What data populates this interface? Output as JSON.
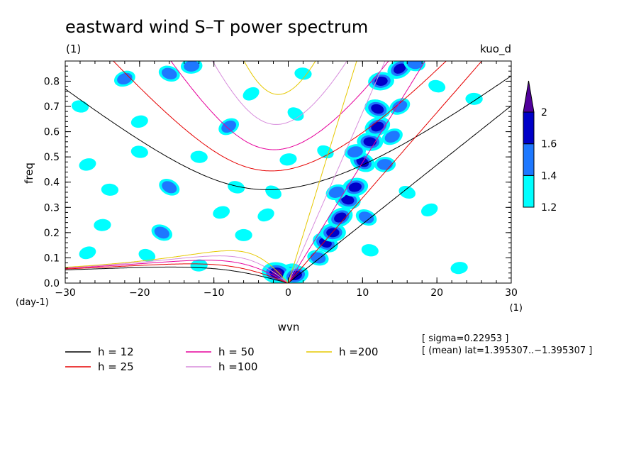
{
  "chart_data": {
    "type": "heatmap",
    "title": "eastward wind S–T power spectrum",
    "subtitle_left": "(1)",
    "subtitle_right": "kuo_d",
    "xlabel": "wvn",
    "ylabel": "freq",
    "x_unit": "(1)",
    "y_unit": "(day-1)",
    "xlim": [
      -30,
      30
    ],
    "ylim": [
      0,
      0.88
    ],
    "x_ticks": [
      -30,
      -20,
      -10,
      0,
      10,
      20,
      30
    ],
    "x_tick_labels": [
      "−30",
      "−20",
      "−10",
      "0",
      "10",
      "20",
      "30"
    ],
    "y_ticks": [
      0,
      0.1,
      0.2,
      0.3,
      0.4,
      0.5,
      0.6,
      0.7,
      0.8
    ],
    "y_tick_labels": [
      "0.0",
      "0.1",
      "0.2",
      "0.3",
      "0.4",
      "0.5",
      "0.6",
      "0.7",
      "0.8"
    ],
    "colorbar": {
      "levels": [
        1.2,
        1.4,
        1.6,
        2
      ],
      "labels": [
        "1.2",
        "1.4",
        "1.6",
        "2"
      ],
      "colors": [
        "#00ffff",
        "#1e78ff",
        "#0000c8",
        "#50009b"
      ]
    },
    "dispersion_curves": [
      {
        "h": 12,
        "label": "h = 12",
        "color": "#000000"
      },
      {
        "h": 25,
        "label": "h = 25",
        "color": "#e60000"
      },
      {
        "h": 50,
        "label": "h = 50",
        "color": "#e6009b"
      },
      {
        "h": 100,
        "label": "h =100",
        "color": "#d78cdc"
      },
      {
        "h": 200,
        "label": "h =200",
        "color": "#e6c800"
      }
    ],
    "annotation_sigma": "[ sigma=0.22953 ]",
    "annotation_mean": "[ (mean) lat=1.395307..−1.395307 ]",
    "blobs": [
      {
        "x": 0,
        "y": 0.03,
        "level": 4
      },
      {
        "x": -1.5,
        "y": 0.04,
        "level": 4
      },
      {
        "x": 1,
        "y": 0.03,
        "level": 3
      },
      {
        "x": 5,
        "y": 0.16,
        "level": 3
      },
      {
        "x": 6,
        "y": 0.2,
        "level": 3
      },
      {
        "x": 7,
        "y": 0.26,
        "level": 3
      },
      {
        "x": 8,
        "y": 0.33,
        "level": 3
      },
      {
        "x": 9,
        "y": 0.38,
        "level": 3
      },
      {
        "x": 10,
        "y": 0.48,
        "level": 3
      },
      {
        "x": 11,
        "y": 0.56,
        "level": 3
      },
      {
        "x": 12,
        "y": 0.62,
        "level": 3
      },
      {
        "x": 12,
        "y": 0.69,
        "level": 3
      },
      {
        "x": 12.5,
        "y": 0.8,
        "level": 3
      },
      {
        "x": 15,
        "y": 0.85,
        "level": 3
      },
      {
        "x": 17,
        "y": 0.87,
        "level": 2
      },
      {
        "x": 6.5,
        "y": 0.36,
        "level": 2
      },
      {
        "x": 10.5,
        "y": 0.26,
        "level": 2
      },
      {
        "x": 13,
        "y": 0.47,
        "level": 2
      },
      {
        "x": 14,
        "y": 0.58,
        "level": 2
      },
      {
        "x": 4,
        "y": 0.1,
        "level": 2
      },
      {
        "x": 9,
        "y": 0.52,
        "level": 2
      },
      {
        "x": -16,
        "y": 0.38,
        "level": 2
      },
      {
        "x": -24,
        "y": 0.37,
        "level": 1
      },
      {
        "x": -22,
        "y": 0.81,
        "level": 2
      },
      {
        "x": -16,
        "y": 0.83,
        "level": 2
      },
      {
        "x": -13,
        "y": 0.86,
        "level": 2
      },
      {
        "x": -8,
        "y": 0.62,
        "level": 2
      },
      {
        "x": -20,
        "y": 0.52,
        "level": 1
      },
      {
        "x": -27,
        "y": 0.47,
        "level": 1
      },
      {
        "x": -17,
        "y": 0.2,
        "level": 2
      },
      {
        "x": -6,
        "y": 0.19,
        "level": 1
      },
      {
        "x": -3,
        "y": 0.27,
        "level": 1
      },
      {
        "x": -7,
        "y": 0.38,
        "level": 1
      },
      {
        "x": 0,
        "y": 0.49,
        "level": 1
      },
      {
        "x": 1,
        "y": 0.67,
        "level": 1
      },
      {
        "x": -12,
        "y": 0.5,
        "level": 1
      },
      {
        "x": -27,
        "y": 0.12,
        "level": 1
      },
      {
        "x": -19,
        "y": 0.11,
        "level": 1
      },
      {
        "x": -12,
        "y": 0.07,
        "level": 1
      },
      {
        "x": -5,
        "y": 0.75,
        "level": 1
      },
      {
        "x": -28,
        "y": 0.7,
        "level": 1
      },
      {
        "x": -20,
        "y": 0.64,
        "level": 1
      },
      {
        "x": 5,
        "y": 0.52,
        "level": 1
      },
      {
        "x": 25,
        "y": 0.73,
        "level": 1
      },
      {
        "x": 19,
        "y": 0.29,
        "level": 1
      },
      {
        "x": 20,
        "y": 0.78,
        "level": 1
      },
      {
        "x": 23,
        "y": 0.06,
        "level": 1
      },
      {
        "x": -2,
        "y": 0.36,
        "level": 1
      },
      {
        "x": 2,
        "y": 0.83,
        "level": 1
      },
      {
        "x": -9,
        "y": 0.28,
        "level": 1
      },
      {
        "x": 16,
        "y": 0.36,
        "level": 1
      },
      {
        "x": -25,
        "y": 0.23,
        "level": 1
      },
      {
        "x": 15,
        "y": 0.7,
        "level": 2
      },
      {
        "x": 11,
        "y": 0.13,
        "level": 1
      }
    ]
  }
}
